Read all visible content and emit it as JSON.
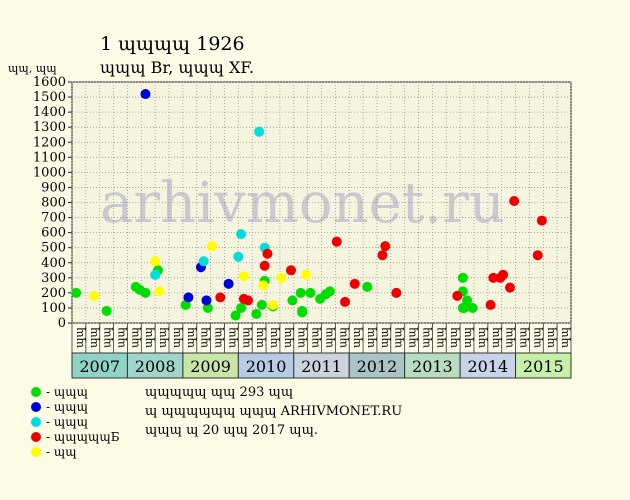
{
  "chart_data": {
    "type": "scatter",
    "title": "1 ɰɰɰɰ 1926",
    "subtitle": "ɰɰɰ Br, ɰɰɰ XF.",
    "ylabel": "ɰɰ, ɰɰ",
    "ylim": [
      0,
      1600
    ],
    "yticks": [
      0,
      100,
      200,
      300,
      400,
      500,
      600,
      700,
      800,
      900,
      1000,
      1100,
      1200,
      1300,
      1400,
      1500,
      1600
    ],
    "grid": true,
    "watermark": "arhivmonet.ru",
    "x_subticks": [
      "ɰɰ",
      "ɰɰ",
      "ɰɰ",
      "ɰɰ",
      "ɰɰ",
      "ɰɰ",
      "ɰɰ",
      "ɰɰ",
      "ɰɰ",
      "ɰɰ",
      "ɰɰ",
      "ɰɰ",
      "ɰɰ",
      "ɰɰ",
      "ɰɰ",
      "ɰɰ",
      "ɰɰ",
      "ɰɰ",
      "ɰɰ",
      "ɰɰ",
      "ɰɰ",
      "ɰɰ",
      "ɰɰ",
      "ɰɰ",
      "ɰɰ",
      "ɰɰ",
      "ɰɰ",
      "ɰɰ",
      "ɰɰ",
      "ɰɰ",
      "ɰɰ",
      "ɰɰ",
      "ɰɰ",
      "ɰɰ",
      "ɰɰ",
      "ɰɰ"
    ],
    "years": [
      {
        "label": "2007",
        "color": "#8fd3c8"
      },
      {
        "label": "2008",
        "color": "#9ed6cc"
      },
      {
        "label": "2009",
        "color": "#c8e6a8"
      },
      {
        "label": "2010",
        "color": "#b8cbe6"
      },
      {
        "label": "2011",
        "color": "#c9d4df"
      },
      {
        "label": "2012",
        "color": "#a9c3c6"
      },
      {
        "label": "2013",
        "color": "#b7dcc0"
      },
      {
        "label": "2014",
        "color": "#c8d2e8"
      },
      {
        "label": "2015",
        "color": "#c6f0a8"
      }
    ],
    "series": [
      {
        "name": "ɰɰɰ",
        "color": "#00dd00",
        "points": [
          [
            0.3,
            200
          ],
          [
            2.5,
            80
          ],
          [
            4.6,
            240
          ],
          [
            4.9,
            220
          ],
          [
            5.3,
            200
          ],
          [
            6.2,
            350
          ],
          [
            8.2,
            120
          ],
          [
            9.8,
            100
          ],
          [
            11.8,
            50
          ],
          [
            12.2,
            100
          ],
          [
            13.3,
            60
          ],
          [
            13.7,
            120
          ],
          [
            13.9,
            280
          ],
          [
            14.5,
            110
          ],
          [
            15.9,
            150
          ],
          [
            16.5,
            200
          ],
          [
            16.6,
            80
          ],
          [
            16.6,
            70
          ],
          [
            17.2,
            200
          ],
          [
            17.9,
            160
          ],
          [
            18.3,
            190
          ],
          [
            18.6,
            210
          ],
          [
            21.3,
            240
          ],
          [
            28.2,
            300
          ],
          [
            28.2,
            210
          ],
          [
            28.2,
            100
          ],
          [
            28.3,
            100
          ],
          [
            28.5,
            150
          ],
          [
            28.9,
            100
          ]
        ]
      },
      {
        "name": "ɰɰɰ",
        "color": "#0000dd",
        "points": [
          [
            5.3,
            1520
          ],
          [
            8.4,
            170
          ],
          [
            9.3,
            370
          ],
          [
            9.7,
            150
          ],
          [
            11.3,
            260
          ]
        ]
      },
      {
        "name": "ɰɰɰ",
        "color": "#00dddd",
        "points": [
          [
            6.0,
            320
          ],
          [
            9.5,
            410
          ],
          [
            12.0,
            440
          ],
          [
            12.2,
            590
          ],
          [
            13.5,
            1270
          ],
          [
            13.9,
            500
          ]
        ]
      },
      {
        "name": "ɰɰɰɰɰБ",
        "color": "#ee0000",
        "points": [
          [
            10.7,
            170
          ],
          [
            12.4,
            160
          ],
          [
            12.7,
            150
          ],
          [
            13.9,
            380
          ],
          [
            14.1,
            460
          ],
          [
            15.8,
            350
          ],
          [
            19.1,
            540
          ],
          [
            19.7,
            140
          ],
          [
            20.4,
            260
          ],
          [
            22.4,
            450
          ],
          [
            22.6,
            510
          ],
          [
            23.4,
            200
          ],
          [
            27.8,
            180
          ],
          [
            30.2,
            120
          ],
          [
            30.4,
            300
          ],
          [
            30.9,
            300
          ],
          [
            31.1,
            320
          ],
          [
            31.6,
            235
          ],
          [
            31.9,
            810
          ],
          [
            33.6,
            450
          ],
          [
            33.9,
            680
          ]
        ]
      },
      {
        "name": "ɰɰ",
        "color": "#ffff00",
        "points": [
          [
            1.6,
            180
          ],
          [
            6.0,
            410
          ],
          [
            6.3,
            210
          ],
          [
            10.1,
            510
          ],
          [
            12.4,
            310
          ],
          [
            13.8,
            250
          ],
          [
            14.5,
            120
          ],
          [
            15.1,
            300
          ],
          [
            16.9,
            320
          ]
        ]
      }
    ]
  },
  "info": {
    "line1": "ɰɰɰɰɰ ɰɰ 293 ɰɰ",
    "line2": "ɰ ɰɰɰɰɰɰ ɰɰɰ ARHIVMONET.RU",
    "line3": "ɰɰɰ ɰ 20 ɰɰ 2017 ɰɰ."
  }
}
